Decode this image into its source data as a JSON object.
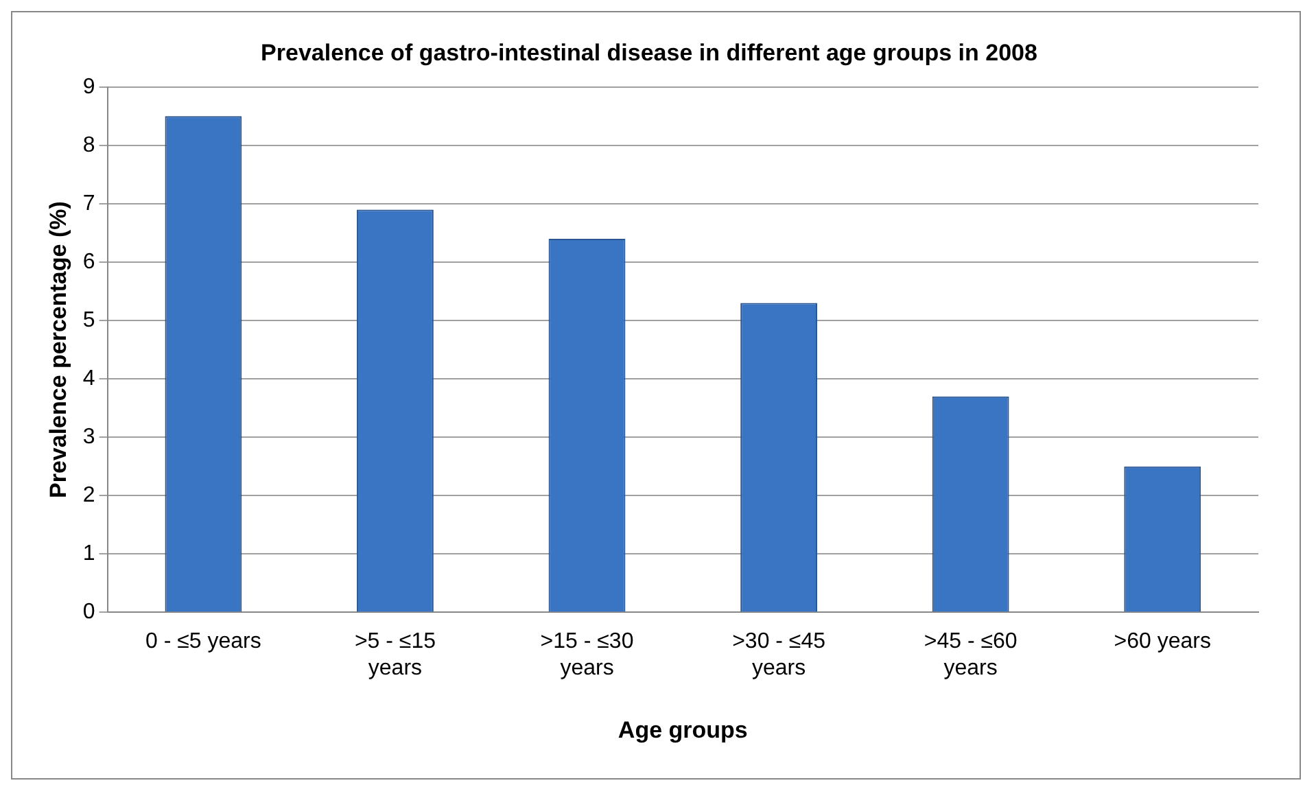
{
  "chart_data": {
    "type": "bar",
    "title": "Prevalence of gastro-intestinal disease in different age groups in 2008",
    "xlabel": "Age groups",
    "ylabel": "Prevalence percentage (%)",
    "categories": [
      "0 - ≤5 years",
      ">5 - ≤15 years",
      ">15 - ≤30 years",
      ">30 - ≤45 years",
      ">45 - ≤60 years",
      ">60 years"
    ],
    "values": [
      8.5,
      6.9,
      6.4,
      5.3,
      3.7,
      2.5
    ],
    "color": "#3a75c4",
    "ylim": [
      0,
      9
    ],
    "yticks": [
      0,
      1,
      2,
      3,
      4,
      5,
      6,
      7,
      8,
      9
    ],
    "grid": "y",
    "legend": false
  }
}
